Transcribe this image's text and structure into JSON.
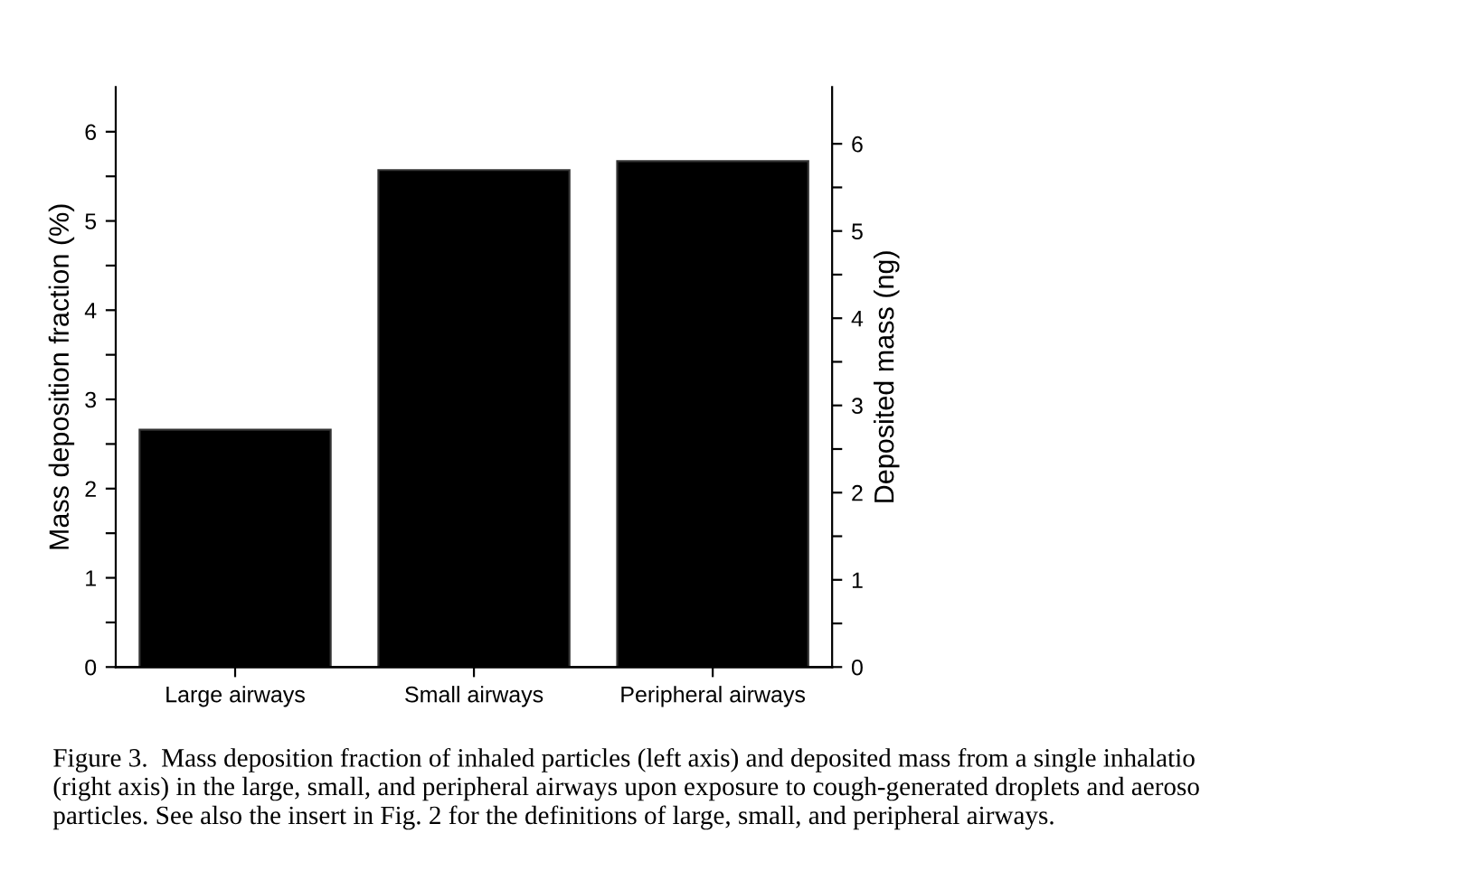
{
  "chart_data": {
    "type": "bar",
    "categories": [
      "Large airways",
      "Small airways",
      "Peripheral airways"
    ],
    "values": [
      2.66,
      5.57,
      5.67
    ],
    "color": "#000000",
    "ylabel": "Mass deposition fraction (%)",
    "y2label": "Deposited mass (ng)",
    "ylim": [
      0,
      6.5
    ],
    "yticks": [
      0,
      {
        "value": 0.5,
        "label": null
      },
      1,
      {
        "value": 1.5,
        "label": null
      },
      2,
      {
        "value": 2.5,
        "label": null
      },
      3,
      {
        "value": 3.5,
        "label": null
      },
      4,
      {
        "value": 4.5,
        "label": null
      },
      5,
      {
        "value": 5.5,
        "label": null
      },
      6
    ],
    "y2lim": [
      0,
      6.65
    ],
    "y2ticks": [
      0,
      {
        "value": 0.5,
        "label": null
      },
      1,
      {
        "value": 1.5,
        "label": null
      },
      2,
      {
        "value": 2.5,
        "label": null
      },
      3,
      {
        "value": 3.5,
        "label": null
      },
      4,
      {
        "value": 4.5,
        "label": null
      },
      5,
      {
        "value": 5.5,
        "label": null
      },
      6
    ],
    "grid": false,
    "legend": false,
    "annotations": [
      "Figure 3.  Mass deposition fraction of inhaled particles (left axis) and deposited mass from a single inhalatio\n(right axis) in the large, small, and peripheral airways upon exposure to cough-generated droplets and aeroso\nparticles. See also the insert in Fig. 2 for the definitions of large, small, and peripheral airways."
    ]
  }
}
